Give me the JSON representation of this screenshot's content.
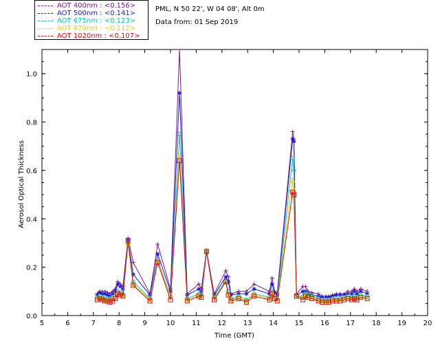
{
  "legend": [
    {
      "label": "AOT  400nm : <0.156>",
      "color": "#7a1a8a"
    },
    {
      "label": "AOT  500nm : <0.141>",
      "color": "#1a1ad8"
    },
    {
      "label": "AOT  675nm : <0.123>",
      "color": "#10c0b0"
    },
    {
      "label": "AOT  870nm : <0.112>",
      "color": "#e8d000"
    },
    {
      "label": "AOT 1020nm : <0.107>",
      "color": "#d01010"
    }
  ],
  "info": {
    "site": "PML, N 50 22', W 04 08', Alt 0m",
    "date": "Data from: 01 Sep 2019"
  },
  "chart_data": {
    "type": "scatter",
    "xlabel": "Time (GMT)",
    "ylabel": "Aerosol Optical Thickness",
    "xlim": [
      5,
      20
    ],
    "ylim": [
      0,
      1.1
    ],
    "xticks": [
      5,
      6,
      7,
      8,
      9,
      10,
      11,
      12,
      13,
      14,
      15,
      16,
      17,
      18,
      19,
      20
    ],
    "yticks": [
      0.0,
      0.2,
      0.4,
      0.6,
      0.8,
      1.0
    ],
    "ytick_labels": [
      "0.0",
      "0.2",
      "0.4",
      "0.6",
      "0.8",
      "1.0"
    ],
    "x": [
      7.15,
      7.25,
      7.35,
      7.45,
      7.55,
      7.65,
      7.75,
      7.85,
      7.95,
      8.05,
      8.15,
      8.35,
      8.55,
      9.2,
      9.5,
      10.0,
      10.35,
      10.65,
      11.1,
      11.2,
      11.4,
      11.7,
      12.15,
      12.25,
      12.35,
      12.65,
      12.95,
      13.25,
      13.85,
      13.95,
      14.05,
      14.15,
      14.75,
      14.8,
      14.9,
      15.15,
      15.25,
      15.35,
      15.5,
      15.75,
      15.9,
      16.05,
      16.15,
      16.3,
      16.45,
      16.6,
      16.75,
      16.9,
      17.05,
      17.15,
      17.25,
      17.4,
      17.65
    ],
    "series": [
      {
        "name": "AOT  400nm",
        "marker": "plus",
        "values": [
          0.09,
          0.1,
          0.1,
          0.1,
          0.095,
          0.09,
          0.1,
          0.11,
          0.14,
          0.13,
          0.12,
          0.32,
          0.22,
          0.09,
          0.295,
          0.11,
          1.1,
          0.09,
          0.13,
          0.11,
          0.27,
          0.09,
          0.185,
          0.16,
          0.09,
          0.1,
          0.1,
          0.13,
          0.1,
          0.155,
          0.1,
          0.09,
          0.76,
          0.73,
          0.09,
          0.12,
          0.12,
          0.1,
          0.095,
          0.09,
          0.08,
          0.08,
          0.08,
          0.085,
          0.09,
          0.09,
          0.09,
          0.1,
          0.1,
          0.11,
          0.1,
          0.11,
          0.1
        ]
      },
      {
        "name": "AOT  500nm",
        "marker": "star",
        "values": [
          0.085,
          0.095,
          0.09,
          0.09,
          0.085,
          0.08,
          0.09,
          0.1,
          0.13,
          0.12,
          0.11,
          0.31,
          0.17,
          0.085,
          0.255,
          0.1,
          0.92,
          0.085,
          0.11,
          0.1,
          0.265,
          0.085,
          0.16,
          0.14,
          0.085,
          0.09,
          0.09,
          0.11,
          0.09,
          0.13,
          0.095,
          0.085,
          0.73,
          0.72,
          0.085,
          0.1,
          0.1,
          0.09,
          0.085,
          0.08,
          0.075,
          0.075,
          0.075,
          0.08,
          0.085,
          0.085,
          0.085,
          0.09,
          0.09,
          0.1,
          0.09,
          0.1,
          0.09
        ]
      },
      {
        "name": "AOT  675nm",
        "marker": "diamond",
        "values": [
          0.075,
          0.08,
          0.075,
          0.075,
          0.07,
          0.07,
          0.075,
          0.08,
          0.1,
          0.095,
          0.09,
          0.3,
          0.14,
          0.07,
          0.23,
          0.08,
          0.75,
          0.07,
          0.09,
          0.085,
          0.265,
          0.075,
          0.145,
          0.1,
          0.07,
          0.08,
          0.065,
          0.09,
          0.075,
          0.1,
          0.08,
          0.07,
          0.65,
          0.6,
          0.08,
          0.08,
          0.09,
          0.085,
          0.08,
          0.07,
          0.065,
          0.065,
          0.065,
          0.07,
          0.07,
          0.07,
          0.075,
          0.08,
          0.075,
          0.08,
          0.075,
          0.085,
          0.08
        ]
      },
      {
        "name": "AOT  870nm",
        "marker": "triangle",
        "values": [
          0.07,
          0.075,
          0.07,
          0.065,
          0.065,
          0.065,
          0.07,
          0.075,
          0.095,
          0.09,
          0.085,
          0.3,
          0.13,
          0.065,
          0.225,
          0.075,
          0.66,
          0.065,
          0.085,
          0.08,
          0.265,
          0.07,
          0.14,
          0.09,
          0.065,
          0.075,
          0.06,
          0.085,
          0.07,
          0.095,
          0.075,
          0.065,
          0.56,
          0.52,
          0.08,
          0.075,
          0.085,
          0.08,
          0.075,
          0.065,
          0.06,
          0.06,
          0.06,
          0.065,
          0.065,
          0.065,
          0.07,
          0.075,
          0.07,
          0.075,
          0.07,
          0.08,
          0.075
        ]
      },
      {
        "name": "AOT 1020nm",
        "marker": "square",
        "values": [
          0.065,
          0.07,
          0.065,
          0.06,
          0.06,
          0.055,
          0.06,
          0.07,
          0.09,
          0.085,
          0.08,
          0.31,
          0.125,
          0.06,
          0.22,
          0.065,
          0.64,
          0.06,
          0.08,
          0.075,
          0.265,
          0.065,
          0.14,
          0.085,
          0.06,
          0.07,
          0.055,
          0.08,
          0.065,
          0.09,
          0.07,
          0.06,
          0.51,
          0.5,
          0.08,
          0.065,
          0.08,
          0.075,
          0.07,
          0.06,
          0.055,
          0.055,
          0.055,
          0.06,
          0.06,
          0.06,
          0.065,
          0.07,
          0.065,
          0.07,
          0.065,
          0.075,
          0.07
        ]
      }
    ]
  }
}
